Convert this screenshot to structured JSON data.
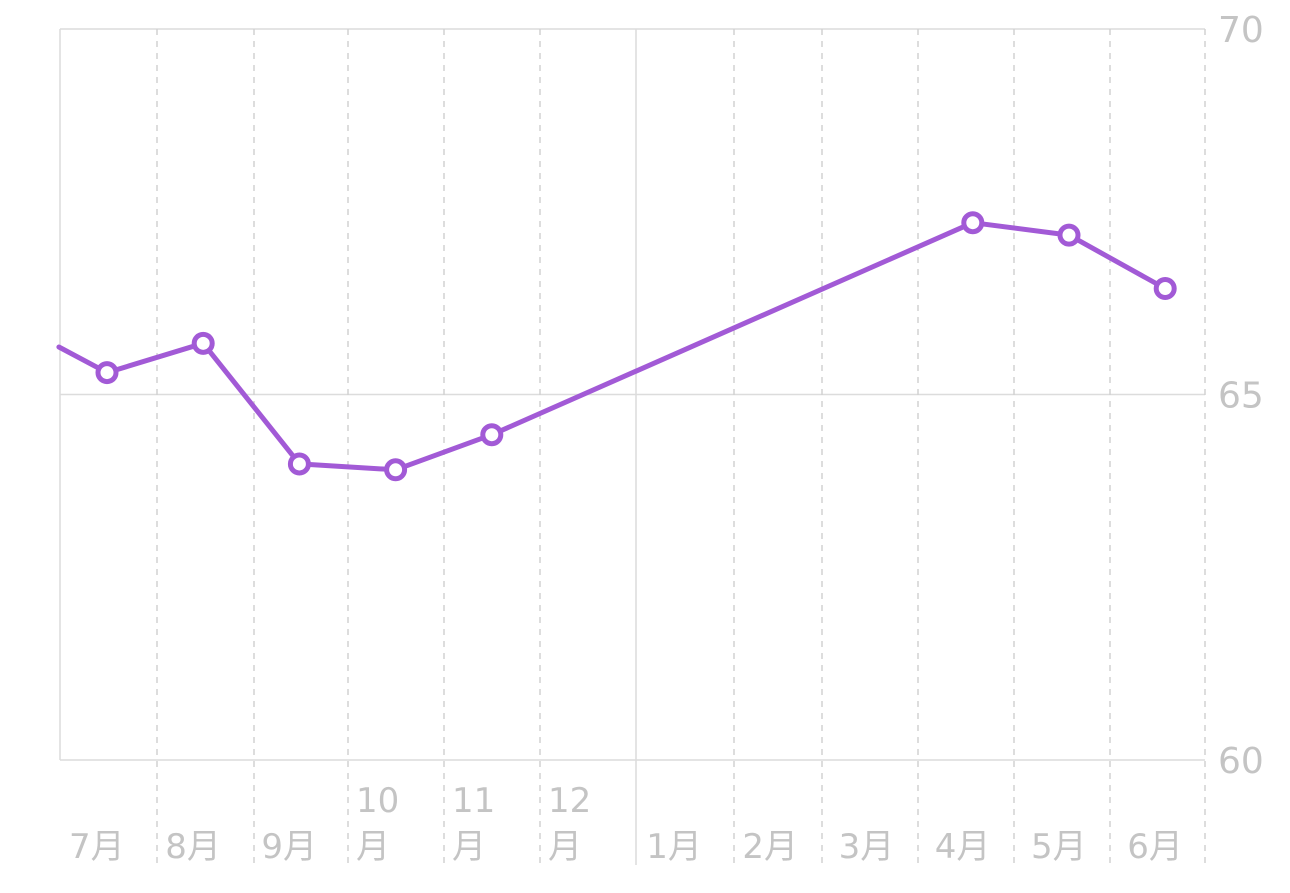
{
  "chart_data": {
    "type": "line",
    "x_labels": [
      "7月",
      "8月",
      "9月",
      "10\n月",
      "11\n月",
      "12\n月",
      "1月",
      "2月",
      "3月",
      "4月",
      "5月",
      "6月"
    ],
    "ylim": [
      60,
      70
    ],
    "y_ticks": [
      70,
      65,
      60
    ],
    "grid": true,
    "y_axis_position": "right",
    "series": [
      {
        "color": "#a25ad6",
        "points": [
          {
            "x": -0.5,
            "y": 65.65
          },
          {
            "x": 0.0,
            "y": 65.3
          },
          {
            "x": 1.0,
            "y": 65.7
          },
          {
            "x": 2.0,
            "y": 64.05
          },
          {
            "x": 3.0,
            "y": 63.97
          },
          {
            "x": 4.0,
            "y": 64.45
          },
          {
            "x": 9.0,
            "y": 67.35
          },
          {
            "x": 10.0,
            "y": 67.18
          },
          {
            "x": 11.0,
            "y": 66.45
          }
        ]
      }
    ]
  }
}
